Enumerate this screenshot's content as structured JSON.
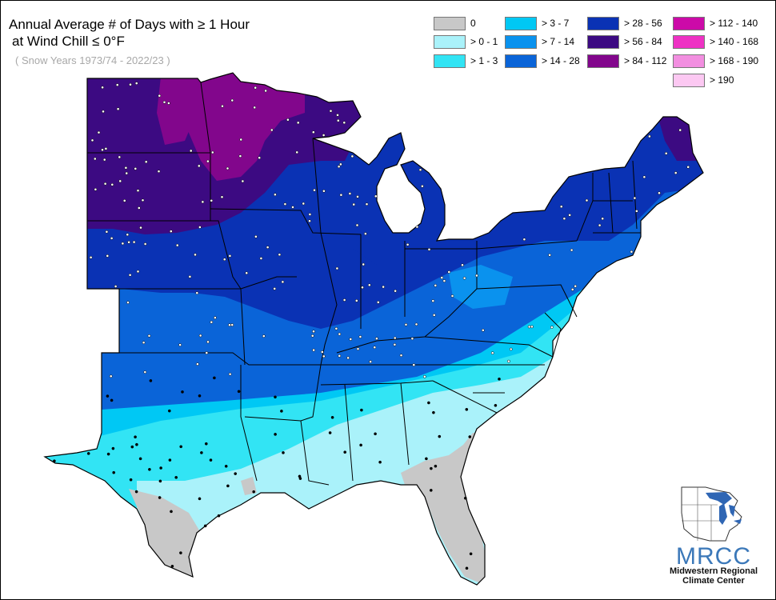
{
  "title": {
    "line1": "Annual Average # of Days with ≥ 1 Hour",
    "line2": "at Wind Chill ≤ 0°F",
    "subtitle": "( Snow Years 1973/74 - 2022/23 )"
  },
  "legend": [
    {
      "label": "0",
      "color": "#c8c8c8"
    },
    {
      "label": "> 0 - 1",
      "color": "#aaf2fa"
    },
    {
      "label": "> 1 - 3",
      "color": "#32e4f4"
    },
    {
      "label": "> 3 - 7",
      "color": "#00c8f4"
    },
    {
      "label": "> 7 - 14",
      "color": "#0a92ee"
    },
    {
      "label": "> 14 - 28",
      "color": "#0a64d8"
    },
    {
      "label": "> 28 - 56",
      "color": "#0a32b4"
    },
    {
      "label": "> 56 - 84",
      "color": "#3c0a82"
    },
    {
      "label": "> 84 - 112",
      "color": "#82068c"
    },
    {
      "label": "> 112 - 140",
      "color": "#cc0aa8"
    },
    {
      "label": "> 140 - 168",
      "color": "#ee32c4"
    },
    {
      "label": "> 168 - 190",
      "color": "#f28ee0"
    },
    {
      "label": "> 190",
      "color": "#fcc8f2"
    }
  ],
  "logo": {
    "name": "MRCC",
    "line1": "Midwestern Regional",
    "line2": "Climate Center"
  }
}
